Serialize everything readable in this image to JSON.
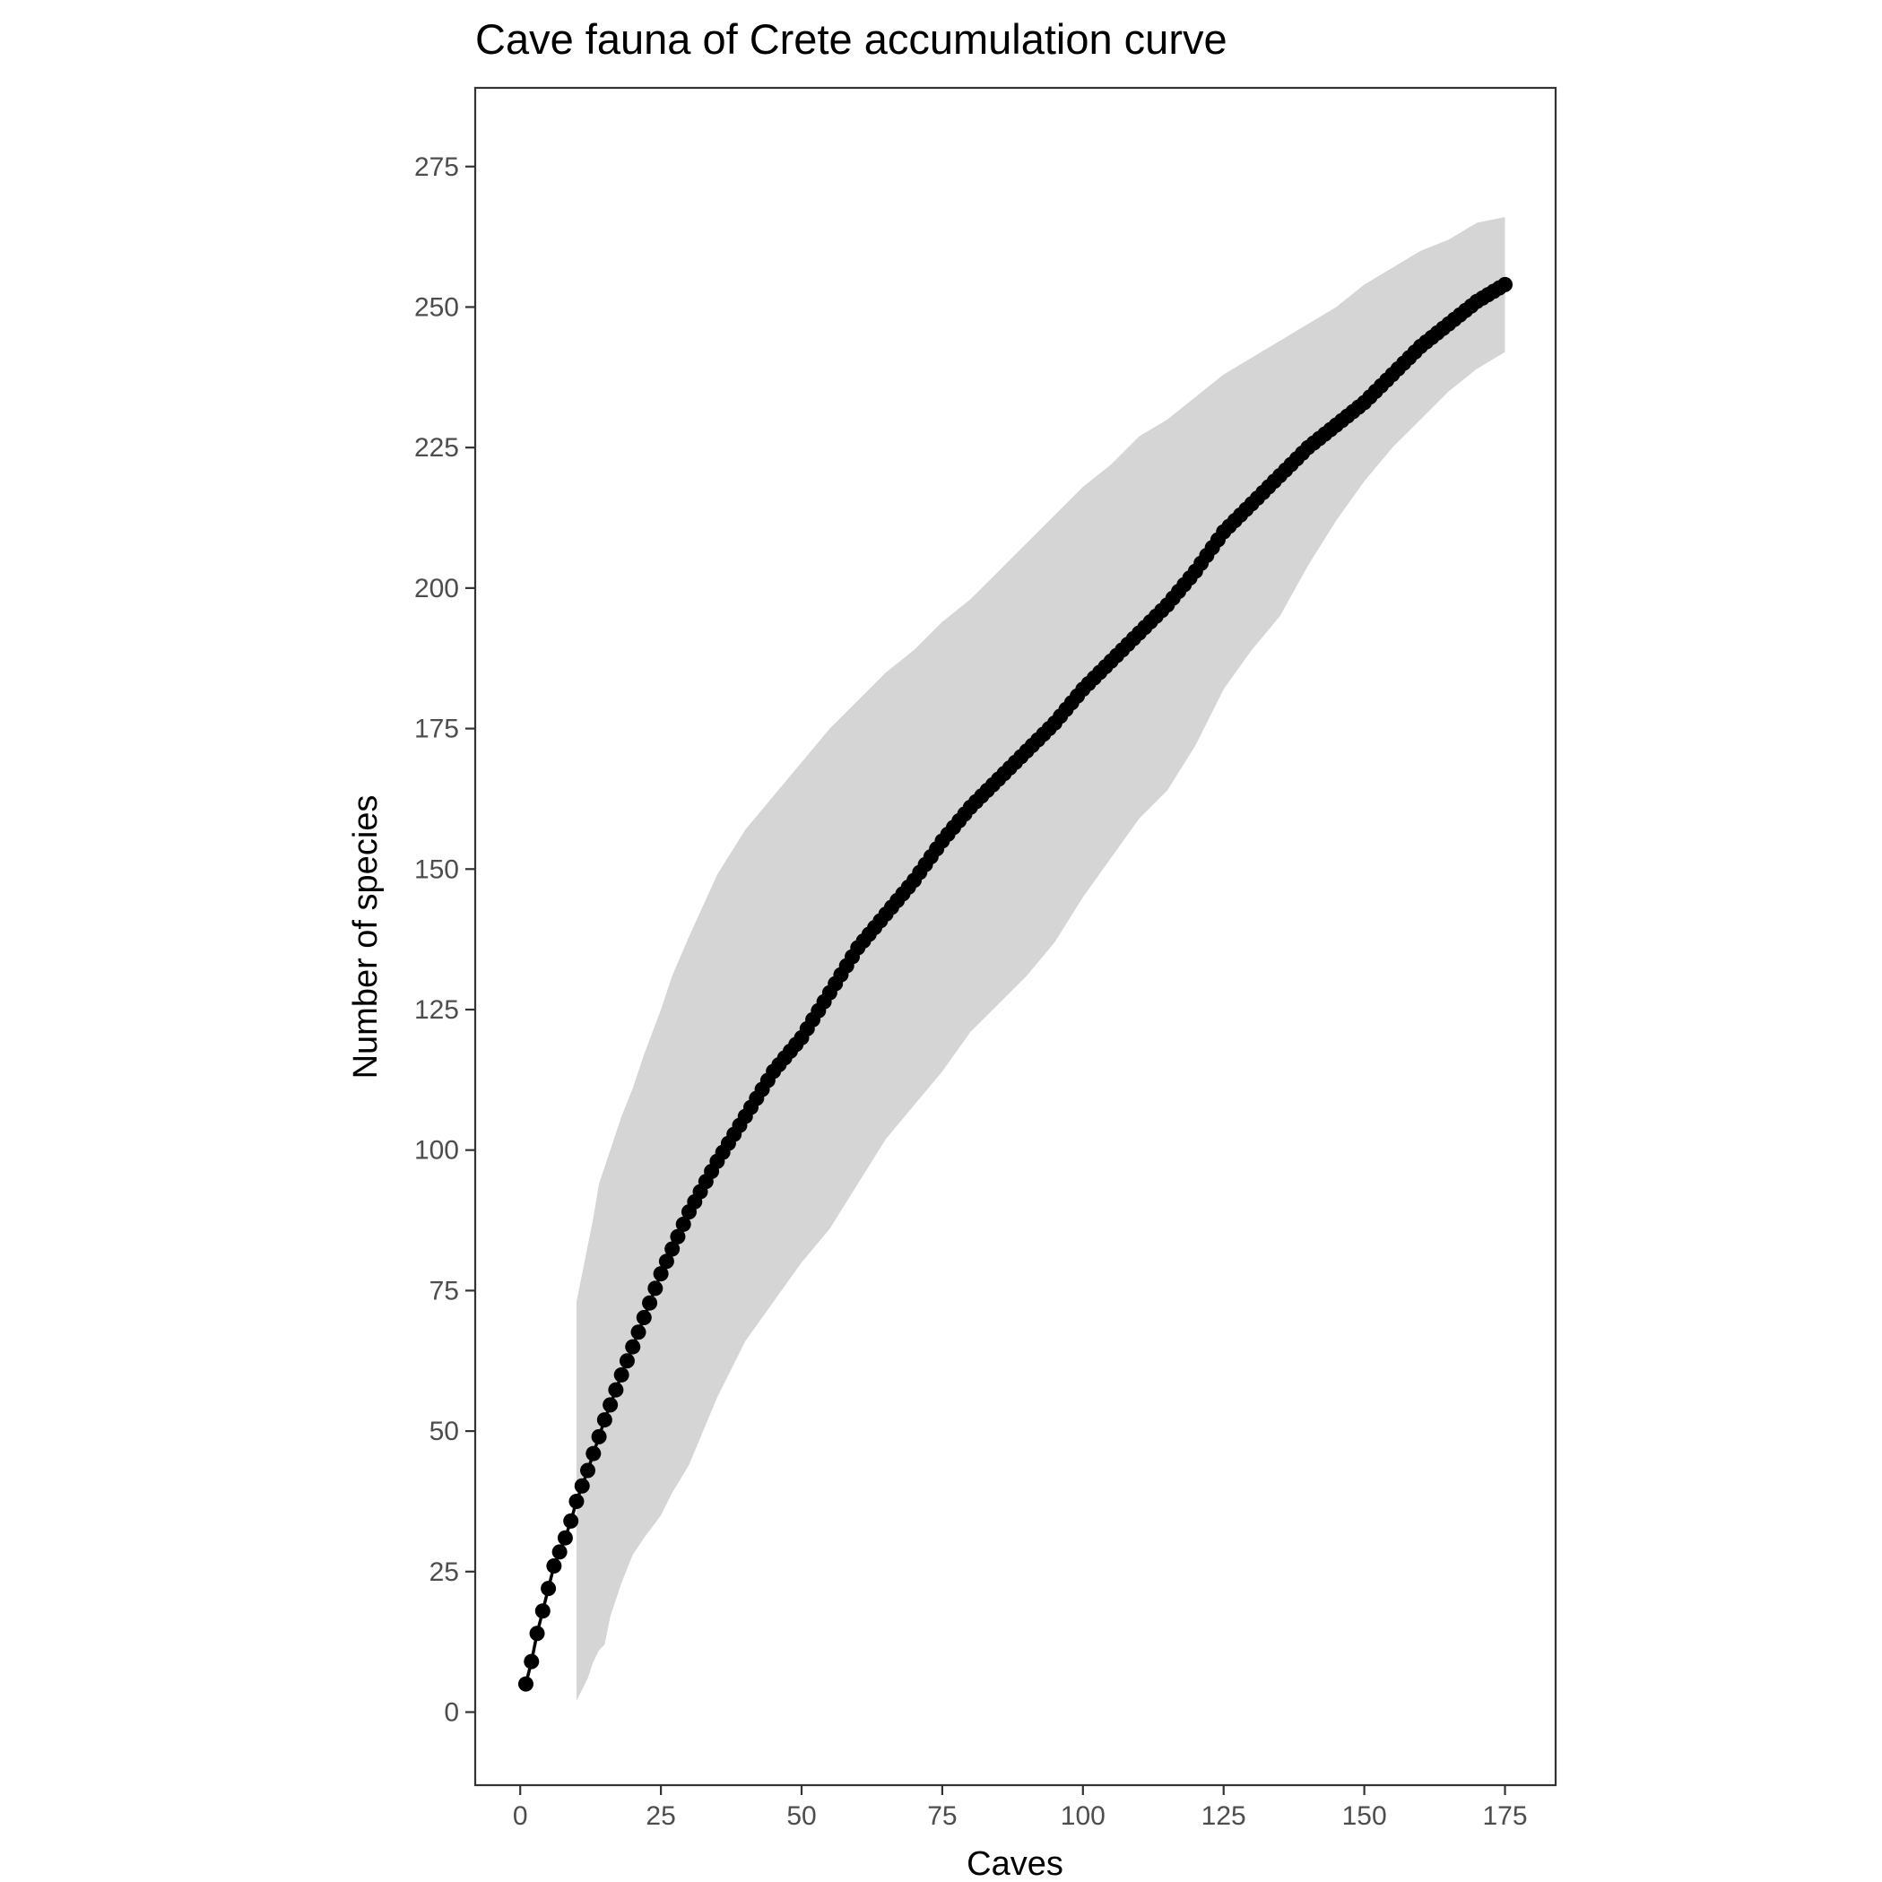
{
  "chart_data": {
    "type": "line",
    "title": "Cave fauna of Crete accumulation curve",
    "xlabel": "Caves",
    "ylabel": "Number of species",
    "xlim": [
      -8,
      184
    ],
    "ylim": [
      -13,
      289
    ],
    "x_ticks": [
      0,
      25,
      50,
      75,
      100,
      125,
      150,
      175
    ],
    "x_tick_labels": [
      "0",
      "25",
      "50",
      "75",
      "100",
      "125",
      "150",
      "175"
    ],
    "y_ticks": [
      0,
      25,
      50,
      75,
      100,
      125,
      150,
      175,
      200,
      225,
      250,
      275
    ],
    "y_tick_labels": [
      "0",
      "25",
      "50",
      "75",
      "100",
      "125",
      "150",
      "175",
      "200",
      "225",
      "250",
      "275"
    ],
    "grid": false,
    "legend": "none",
    "colors": {
      "line": "#000000",
      "point": "#000000",
      "ribbon": "#d5d5d5",
      "panel_border": "#333333"
    },
    "series": [
      {
        "x": [
          1,
          2,
          3,
          4,
          5,
          6,
          7,
          8,
          9,
          10,
          12,
          15,
          18,
          20,
          25,
          30,
          35,
          40,
          45,
          50,
          55,
          60,
          65,
          70,
          75,
          80,
          85,
          90,
          95,
          100,
          105,
          110,
          115,
          120,
          125,
          130,
          135,
          140,
          145,
          150,
          155,
          160,
          165,
          170,
          175
        ],
        "y": [
          5,
          9,
          14,
          18,
          22,
          26,
          28.5,
          31,
          34,
          37.5,
          43,
          52,
          60,
          65,
          78,
          89,
          98,
          106,
          114,
          120,
          128,
          136,
          142,
          148,
          155,
          161,
          166,
          171,
          176,
          182,
          187,
          192,
          197,
          203,
          210,
          215,
          220,
          225,
          229,
          233,
          238,
          243,
          247,
          251,
          254
        ]
      }
    ],
    "ribbon": {
      "x": [
        10,
        11,
        12,
        13,
        14,
        15,
        16,
        17,
        18,
        20,
        22,
        25,
        27,
        30,
        35,
        40,
        45,
        50,
        55,
        60,
        65,
        70,
        75,
        80,
        85,
        90,
        95,
        100,
        105,
        110,
        115,
        120,
        125,
        130,
        135,
        140,
        145,
        150,
        155,
        160,
        165,
        170,
        175
      ],
      "lower": [
        2,
        4,
        6,
        9,
        11,
        12,
        17,
        20,
        23,
        28,
        31,
        35,
        39,
        44,
        56,
        66,
        73,
        80,
        86,
        94,
        102,
        108,
        114,
        121,
        126,
        131,
        137,
        145,
        152,
        159,
        164,
        172,
        182,
        189,
        195,
        204,
        212,
        219,
        225,
        230,
        235,
        239,
        242
      ],
      "upper": [
        73,
        78,
        83,
        88,
        94,
        97,
        100,
        103,
        106,
        111,
        117,
        125,
        131,
        138,
        149,
        157,
        163,
        169,
        175,
        180,
        185,
        189,
        194,
        198,
        203,
        208,
        213,
        218,
        222,
        227,
        230,
        234,
        238,
        241,
        244,
        247,
        250,
        254,
        257,
        260,
        262,
        265,
        266
      ]
    }
  }
}
